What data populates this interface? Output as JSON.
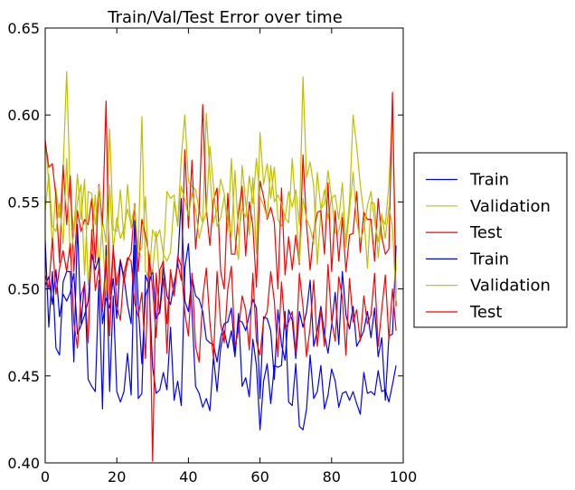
{
  "chart_data": {
    "type": "line",
    "title": "Train/Val/Test Error over time",
    "xlabel": "",
    "ylabel": "",
    "xlim": [
      0,
      100
    ],
    "ylim": [
      0.4,
      0.65
    ],
    "x_ticks": [
      0,
      20,
      40,
      60,
      80,
      100
    ],
    "y_ticks": [
      0.4,
      0.45,
      0.5,
      0.55,
      0.6,
      0.65
    ],
    "x_tick_labels": [
      "0",
      "20",
      "40",
      "60",
      "80",
      "100"
    ],
    "y_tick_labels": [
      "0.40",
      "0.45",
      "0.50",
      "0.55",
      "0.60",
      "0.65"
    ],
    "grid": false,
    "legend_position": "outside-right",
    "series": [
      {
        "name": "Train",
        "color": "#0000ff",
        "values": [
          0.528,
          0.478,
          0.51,
          0.466,
          0.462,
          0.504,
          0.51,
          0.51,
          0.458,
          0.537,
          0.48,
          0.504,
          0.448,
          0.444,
          0.441,
          0.505,
          0.431,
          0.525,
          0.441,
          0.496,
          0.441,
          0.435,
          0.441,
          0.463,
          0.439,
          0.525,
          0.437,
          0.44,
          0.508,
          0.502,
          0.455,
          0.44,
          0.442,
          0.452,
          0.442,
          0.478,
          0.436,
          0.447,
          0.433,
          0.512,
          0.526,
          0.487,
          0.444,
          0.44,
          0.432,
          0.437,
          0.43,
          0.461,
          0.441,
          0.466,
          0.476,
          0.466,
          0.476,
          0.461,
          0.486,
          0.444,
          0.449,
          0.438,
          0.471,
          0.456,
          0.419,
          0.447,
          0.457,
          0.434,
          0.456,
          0.455,
          0.456,
          0.487,
          0.435,
          0.433,
          0.457,
          0.421,
          0.419,
          0.431,
          0.462,
          0.437,
          0.441,
          0.456,
          0.431,
          0.439,
          0.454,
          0.447,
          0.432,
          0.44,
          0.441,
          0.436,
          0.441,
          0.434,
          0.428,
          0.452,
          0.44,
          0.441,
          0.439,
          0.453,
          0.441,
          0.442,
          0.435,
          0.445,
          0.456
        ]
      },
      {
        "name": "Validation",
        "color": "#bfbf00",
        "values": [
          0.586,
          0.561,
          0.524,
          0.558,
          0.541,
          0.568,
          0.625,
          0.553,
          0.533,
          0.566,
          0.54,
          0.563,
          0.502,
          0.529,
          0.554,
          0.51,
          0.539,
          0.527,
          0.592,
          0.534,
          0.533,
          0.557,
          0.528,
          0.56,
          0.535,
          0.54,
          0.523,
          0.599,
          0.51,
          0.507,
          0.534,
          0.529,
          0.534,
          0.52,
          0.516,
          0.521,
          0.55,
          0.537,
          0.575,
          0.6,
          0.562,
          0.559,
          0.557,
          0.545,
          0.538,
          0.601,
          0.567,
          0.538,
          0.546,
          0.563,
          0.555,
          0.533,
          0.575,
          0.53,
          0.517,
          0.571,
          0.55,
          0.531,
          0.564,
          0.52,
          0.59,
          0.56,
          0.572,
          0.552,
          0.57,
          0.54,
          0.536,
          0.541,
          0.556,
          0.547,
          0.557,
          0.537,
          0.622,
          0.564,
          0.573,
          0.559,
          0.514,
          0.545,
          0.557,
          0.54,
          0.553,
          0.532,
          0.533,
          0.544,
          0.528,
          0.55,
          0.6,
          0.582,
          0.56,
          0.543,
          0.512,
          0.55,
          0.549,
          0.518,
          0.541,
          0.537,
          0.56,
          0.604,
          0.51
        ]
      },
      {
        "name": "Test",
        "color": "#ff0000",
        "values": [
          0.585,
          0.57,
          0.572,
          0.553,
          0.515,
          0.571,
          0.537,
          0.565,
          0.51,
          0.545,
          0.533,
          0.54,
          0.537,
          0.552,
          0.515,
          0.56,
          0.537,
          0.608,
          0.494,
          0.523,
          0.502,
          0.517,
          0.504,
          0.516,
          0.521,
          0.549,
          0.51,
          0.54,
          0.531,
          0.519,
          0.401,
          0.509,
          0.486,
          0.506,
          0.48,
          0.51,
          0.496,
          0.515,
          0.505,
          0.58,
          0.535,
          0.574,
          0.523,
          0.545,
          0.606,
          0.546,
          0.525,
          0.551,
          0.558,
          0.51,
          0.5,
          0.555,
          0.52,
          0.52,
          0.544,
          0.559,
          0.519,
          0.55,
          0.536,
          0.501,
          0.562,
          0.553,
          0.54,
          0.547,
          0.538,
          0.5,
          0.558,
          0.508,
          0.53,
          0.511,
          0.531,
          0.514,
          0.577,
          0.537,
          0.511,
          0.532,
          0.544,
          0.545,
          0.52,
          0.561,
          0.51,
          0.545,
          0.516,
          0.541,
          0.51,
          0.531,
          0.532,
          0.556,
          0.521,
          0.544,
          0.54,
          0.54,
          0.516,
          0.552,
          0.53,
          0.52,
          0.523,
          0.613,
          0.49
        ]
      },
      {
        "name": "Train",
        "color": "#0000ff",
        "values": [
          0.502,
          0.507,
          0.491,
          0.511,
          0.484,
          0.497,
          0.493,
          0.498,
          0.509,
          0.474,
          0.479,
          0.485,
          0.493,
          0.52,
          0.511,
          0.518,
          0.48,
          0.495,
          0.489,
          0.506,
          0.483,
          0.516,
          0.507,
          0.491,
          0.48,
          0.539,
          0.49,
          0.457,
          0.496,
          0.503,
          0.511,
          0.483,
          0.487,
          0.514,
          0.496,
          0.491,
          0.503,
          0.514,
          0.552,
          0.493,
          0.487,
          0.507,
          0.496,
          0.494,
          0.487,
          0.471,
          0.469,
          0.468,
          0.458,
          0.472,
          0.48,
          0.481,
          0.489,
          0.463,
          0.482,
          0.481,
          0.476,
          0.485,
          0.494,
          0.489,
          0.437,
          0.484,
          0.483,
          0.476,
          0.448,
          0.488,
          0.468,
          0.459,
          0.488,
          0.482,
          0.46,
          0.487,
          0.478,
          0.487,
          0.505,
          0.467,
          0.476,
          0.49,
          0.474,
          0.463,
          0.479,
          0.498,
          0.468,
          0.51,
          0.485,
          0.477,
          0.49,
          0.467,
          0.471,
          0.476,
          0.487,
          0.472,
          0.489,
          0.461,
          0.472,
          0.436,
          0.473,
          0.474,
          0.525
        ]
      },
      {
        "name": "Validation",
        "color": "#bfbf00",
        "values": [
          0.545,
          0.566,
          0.536,
          0.533,
          0.549,
          0.526,
          0.575,
          0.518,
          0.532,
          0.55,
          0.56,
          0.508,
          0.556,
          0.555,
          0.537,
          0.559,
          0.53,
          0.495,
          0.56,
          0.523,
          0.541,
          0.529,
          0.535,
          0.546,
          0.537,
          0.548,
          0.52,
          0.524,
          0.553,
          0.508,
          0.51,
          0.533,
          0.503,
          0.518,
          0.556,
          0.552,
          0.554,
          0.536,
          0.559,
          0.551,
          0.542,
          0.555,
          0.546,
          0.529,
          0.538,
          0.544,
          0.582,
          0.559,
          0.536,
          0.541,
          0.553,
          0.541,
          0.53,
          0.568,
          0.531,
          0.546,
          0.541,
          0.565,
          0.549,
          0.575,
          0.553,
          0.548,
          0.541,
          0.571,
          0.55,
          0.554,
          0.549,
          0.541,
          0.538,
          0.575,
          0.545,
          0.515,
          0.552,
          0.54,
          0.535,
          0.526,
          0.567,
          0.546,
          0.549,
          0.568,
          0.552,
          0.554,
          0.54,
          0.561,
          0.524,
          0.545,
          0.567,
          0.539,
          0.528,
          0.534,
          0.548,
          0.556,
          0.539,
          0.527,
          0.543,
          0.529,
          0.547,
          0.536,
          0.493
        ]
      },
      {
        "name": "Test",
        "color": "#ff0000",
        "values": [
          0.508,
          0.5,
          0.529,
          0.497,
          0.512,
          0.522,
          0.51,
          0.526,
          0.481,
          0.466,
          0.496,
          0.503,
          0.469,
          0.534,
          0.499,
          0.512,
          0.487,
          0.519,
          0.473,
          0.525,
          0.49,
          0.482,
          0.509,
          0.518,
          0.516,
          0.492,
          0.484,
          0.498,
          0.46,
          0.52,
          0.5,
          0.472,
          0.511,
          0.516,
          0.463,
          0.511,
          0.496,
          0.519,
          0.513,
          0.486,
          0.473,
          0.509,
          0.467,
          0.458,
          0.495,
          0.512,
          0.481,
          0.46,
          0.51,
          0.48,
          0.469,
          0.5,
          0.513,
          0.467,
          0.476,
          0.496,
          0.488,
          0.465,
          0.509,
          0.47,
          0.462,
          0.482,
          0.487,
          0.51,
          0.493,
          0.461,
          0.504,
          0.477,
          0.481,
          0.487,
          0.463,
          0.509,
          0.49,
          0.461,
          0.478,
          0.505,
          0.467,
          0.488,
          0.467,
          0.514,
          0.482,
          0.47,
          0.507,
          0.495,
          0.462,
          0.506,
          0.481,
          0.488,
          0.47,
          0.496,
          0.48,
          0.485,
          0.509,
          0.467,
          0.488,
          0.508,
          0.471,
          0.5,
          0.476
        ]
      }
    ]
  }
}
